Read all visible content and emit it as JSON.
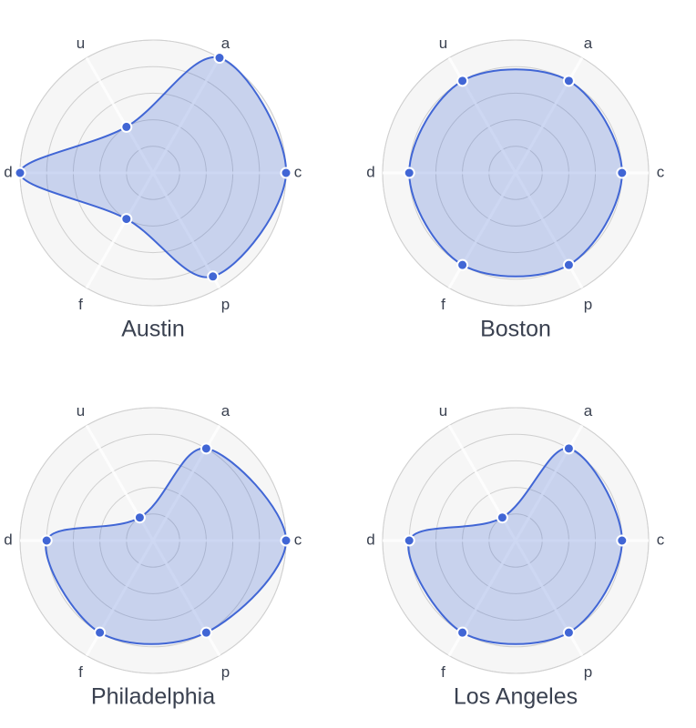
{
  "chart_data": [
    {
      "type": "radar",
      "title": "Austin",
      "categories": [
        "a",
        "c",
        "p",
        "f",
        "d",
        "u"
      ],
      "series": [
        {
          "color": "#4166d5",
          "values": [
            5,
            5,
            4.5,
            2,
            5,
            2
          ]
        }
      ],
      "rlim": [
        0,
        5
      ],
      "rticks": [
        1,
        2,
        3,
        4,
        5
      ]
    },
    {
      "type": "radar",
      "title": "Boston",
      "categories": [
        "a",
        "c",
        "p",
        "f",
        "d",
        "u"
      ],
      "series": [
        {
          "color": "#4166d5",
          "values": [
            4,
            4,
            4,
            4,
            4,
            4
          ]
        }
      ],
      "rlim": [
        0,
        5
      ],
      "rticks": [
        1,
        2,
        3,
        4,
        5
      ]
    },
    {
      "type": "radar",
      "title": "Philadelphia",
      "categories": [
        "a",
        "c",
        "p",
        "f",
        "d",
        "u"
      ],
      "series": [
        {
          "color": "#4166d5",
          "values": [
            4,
            5,
            4,
            4,
            4,
            1
          ]
        }
      ],
      "rlim": [
        0,
        5
      ],
      "rticks": [
        1,
        2,
        3,
        4,
        5
      ]
    },
    {
      "type": "radar",
      "title": "Los Angeles",
      "categories": [
        "a",
        "c",
        "p",
        "f",
        "d",
        "u"
      ],
      "series": [
        {
          "color": "#4166d5",
          "values": [
            4,
            4,
            4,
            4,
            4,
            1
          ]
        }
      ],
      "rlim": [
        0,
        5
      ],
      "rticks": [
        1,
        2,
        3,
        4,
        5
      ]
    }
  ]
}
